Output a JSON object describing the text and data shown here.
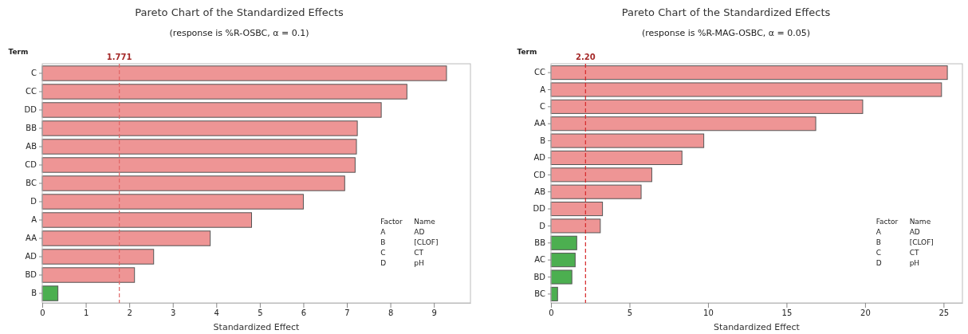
{
  "chart_data": [
    {
      "type": "bar",
      "orientation": "horizontal",
      "title": "Pareto Chart of the Standardized Effects",
      "subtitle": "(response is %R-OSBC, α = 0.1)",
      "xlabel": "Standardized Effect",
      "ylabel": "Term",
      "categories": [
        "C",
        "CC",
        "DD",
        "BB",
        "AB",
        "CD",
        "BC",
        "D",
        "A",
        "AA",
        "AD",
        "BD",
        "B"
      ],
      "values": [
        9.29,
        8.38,
        7.79,
        7.24,
        7.22,
        7.19,
        6.95,
        6.0,
        4.81,
        3.86,
        2.56,
        2.12,
        0.36
      ],
      "colors": [
        "#ee9595",
        "#ee9595",
        "#ee9595",
        "#ee9595",
        "#ee9595",
        "#ee9595",
        "#ee9595",
        "#ee9595",
        "#ee9595",
        "#ee9595",
        "#ee9595",
        "#ee9595",
        "#4caf50"
      ],
      "xlim": [
        0,
        9.84
      ],
      "xticks": [
        0,
        1,
        2,
        3,
        4,
        5,
        6,
        7,
        8,
        9
      ],
      "ref_lines": [
        {
          "axis": "x",
          "value": 1.771,
          "label": "1.771",
          "color": "#e06666",
          "line_style": "dashed"
        }
      ],
      "annotations": [
        "Factor",
        "Name",
        "A",
        "AD",
        "B",
        "[CLOF]",
        "C",
        "CT",
        "D",
        "pH"
      ],
      "grid": false
    },
    {
      "type": "bar",
      "orientation": "horizontal",
      "title": "Pareto Chart of the Standardized Effects",
      "subtitle": "(response is %R-MAG-OSBC, α = 0.05)",
      "xlabel": "Standardized Effect",
      "ylabel": "Term",
      "categories": [
        "CC",
        "A",
        "C",
        "AA",
        "B",
        "AD",
        "CD",
        "AB",
        "DD",
        "D",
        "BB",
        "AC",
        "BD",
        "BC"
      ],
      "values": [
        25.24,
        24.87,
        19.85,
        16.86,
        9.73,
        8.34,
        6.42,
        5.74,
        3.28,
        3.14,
        1.64,
        1.54,
        1.33,
        0.42
      ],
      "colors": [
        "#ee9595",
        "#ee9595",
        "#ee9595",
        "#ee9595",
        "#ee9595",
        "#ee9595",
        "#ee9595",
        "#ee9595",
        "#ee9595",
        "#ee9595",
        "#4caf50",
        "#4caf50",
        "#4caf50",
        "#4caf50"
      ],
      "xlim": [
        0,
        26.2
      ],
      "xticks": [
        0,
        5,
        10,
        15,
        20,
        25
      ],
      "ref_lines": [
        {
          "axis": "x",
          "value": 2.2,
          "label": "2.20",
          "color": "#d62728",
          "line_style": "dashed"
        }
      ],
      "annotations": [
        "Factor",
        "Name",
        "A",
        "AD",
        "B",
        "[CLOF]",
        "C",
        "CT",
        "D",
        "pH"
      ],
      "grid": false
    }
  ]
}
